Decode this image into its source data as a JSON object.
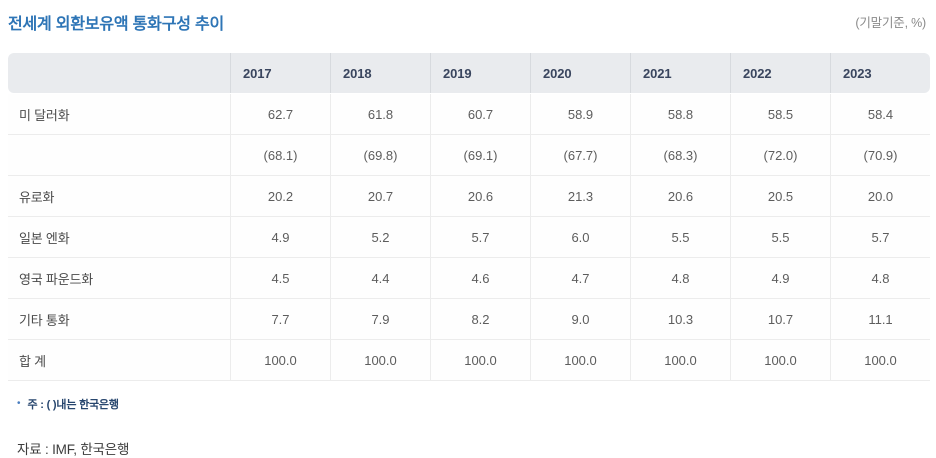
{
  "header": {
    "title": "전세계 외환보유액 통화구성 추이",
    "unit_label": "(기말기준, %)"
  },
  "chart_data": {
    "type": "table",
    "title": "전세계 외환보유액 통화구성 추이",
    "unit": "(기말기준, %)",
    "columns": [
      "2017",
      "2018",
      "2019",
      "2020",
      "2021",
      "2022",
      "2023"
    ],
    "rows": [
      {
        "label": "미 달러화",
        "values": [
          "62.7",
          "61.8",
          "60.7",
          "58.9",
          "58.8",
          "58.5",
          "58.4"
        ]
      },
      {
        "label": "",
        "values": [
          "(68.1)",
          "(69.8)",
          "(69.1)",
          "(67.7)",
          "(68.3)",
          "(72.0)",
          "(70.9)"
        ]
      },
      {
        "label": "유로화",
        "values": [
          "20.2",
          "20.7",
          "20.6",
          "21.3",
          "20.6",
          "20.5",
          "20.0"
        ]
      },
      {
        "label": "일본 엔화",
        "values": [
          "4.9",
          "5.2",
          "5.7",
          "6.0",
          "5.5",
          "5.5",
          "5.7"
        ]
      },
      {
        "label": "영국 파운드화",
        "values": [
          "4.5",
          "4.4",
          "4.6",
          "4.7",
          "4.8",
          "4.9",
          "4.8"
        ]
      },
      {
        "label": "기타 통화",
        "values": [
          "7.7",
          "7.9",
          "8.2",
          "9.0",
          "10.3",
          "10.7",
          "11.1"
        ]
      },
      {
        "label": "합 계",
        "values": [
          "100.0",
          "100.0",
          "100.0",
          "100.0",
          "100.0",
          "100.0",
          "100.0"
        ]
      }
    ],
    "note": "주 : ( )내는 한국은행",
    "source": "자료 : IMF, 한국은행"
  },
  "footer": {
    "note_bullet": "•",
    "note": "주 : ( )내는 한국은행",
    "source": "자료 : IMF, 한국은행"
  },
  "colors": {
    "title_blue": "#2e75b6",
    "header_bg": "#e9ebee",
    "header_text": "#39455e",
    "note_navy": "#27466e",
    "bullet_blue": "#4a7ec0"
  }
}
